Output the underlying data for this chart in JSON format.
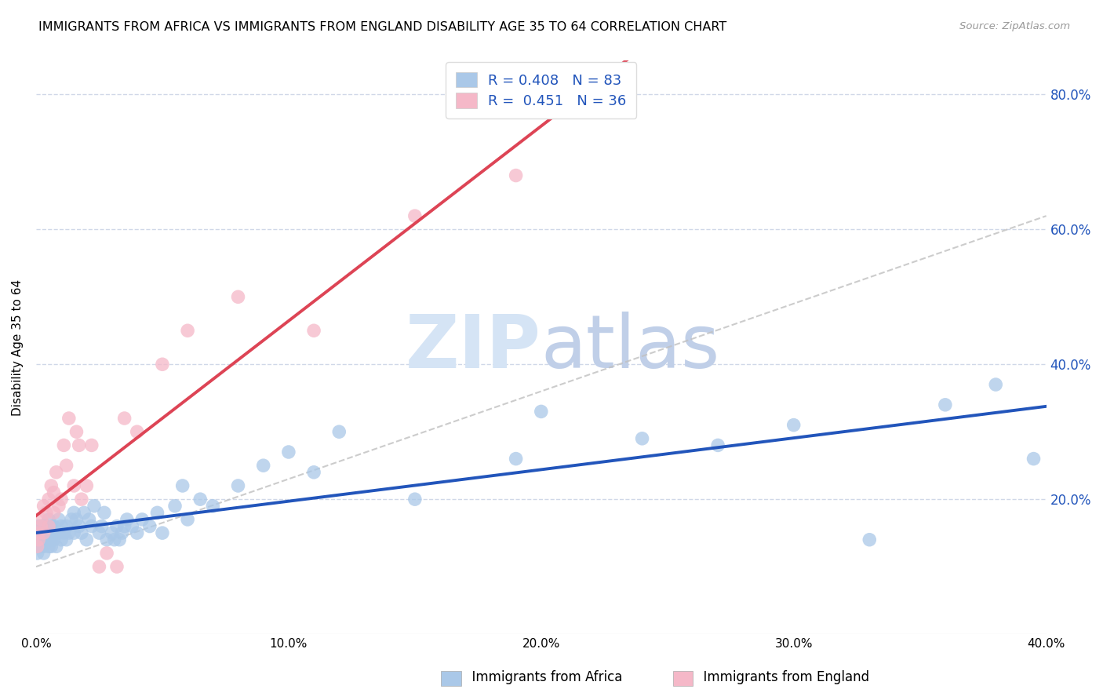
{
  "title": "IMMIGRANTS FROM AFRICA VS IMMIGRANTS FROM ENGLAND DISABILITY AGE 35 TO 64 CORRELATION CHART",
  "source": "Source: ZipAtlas.com",
  "ylabel": "Disability Age 35 to 64",
  "xmin": 0.0,
  "xmax": 0.4,
  "ymin": 0.0,
  "ymax": 0.85,
  "africa_R": 0.408,
  "africa_N": 83,
  "england_R": 0.451,
  "england_N": 36,
  "africa_color": "#aac8e8",
  "england_color": "#f5b8c8",
  "africa_line_color": "#2255bb",
  "england_line_color": "#dd4455",
  "trend_line_color": "#c0c0c0",
  "grid_color": "#d0d8e8",
  "watermark_color": "#ccd8ee",
  "africa_x": [
    0.0005,
    0.001,
    0.001,
    0.001,
    0.0015,
    0.002,
    0.002,
    0.002,
    0.0025,
    0.003,
    0.003,
    0.003,
    0.003,
    0.004,
    0.004,
    0.004,
    0.005,
    0.005,
    0.005,
    0.006,
    0.006,
    0.006,
    0.007,
    0.007,
    0.007,
    0.008,
    0.008,
    0.009,
    0.009,
    0.01,
    0.01,
    0.011,
    0.012,
    0.012,
    0.013,
    0.014,
    0.015,
    0.015,
    0.016,
    0.017,
    0.018,
    0.019,
    0.02,
    0.021,
    0.022,
    0.023,
    0.025,
    0.026,
    0.027,
    0.028,
    0.03,
    0.031,
    0.032,
    0.033,
    0.034,
    0.035,
    0.036,
    0.038,
    0.04,
    0.042,
    0.045,
    0.048,
    0.05,
    0.055,
    0.058,
    0.06,
    0.065,
    0.07,
    0.08,
    0.09,
    0.1,
    0.11,
    0.12,
    0.15,
    0.19,
    0.2,
    0.24,
    0.27,
    0.3,
    0.33,
    0.36,
    0.38,
    0.395
  ],
  "africa_y": [
    0.12,
    0.14,
    0.16,
    0.13,
    0.15,
    0.14,
    0.16,
    0.13,
    0.15,
    0.14,
    0.13,
    0.16,
    0.12,
    0.15,
    0.14,
    0.16,
    0.13,
    0.15,
    0.17,
    0.14,
    0.16,
    0.13,
    0.15,
    0.14,
    0.16,
    0.15,
    0.13,
    0.17,
    0.15,
    0.14,
    0.16,
    0.15,
    0.14,
    0.16,
    0.15,
    0.17,
    0.18,
    0.15,
    0.17,
    0.16,
    0.15,
    0.18,
    0.14,
    0.17,
    0.16,
    0.19,
    0.15,
    0.16,
    0.18,
    0.14,
    0.15,
    0.14,
    0.16,
    0.14,
    0.15,
    0.16,
    0.17,
    0.16,
    0.15,
    0.17,
    0.16,
    0.18,
    0.15,
    0.19,
    0.22,
    0.17,
    0.2,
    0.19,
    0.22,
    0.25,
    0.27,
    0.24,
    0.3,
    0.2,
    0.26,
    0.33,
    0.29,
    0.28,
    0.31,
    0.14,
    0.34,
    0.37,
    0.26
  ],
  "england_x": [
    0.0005,
    0.001,
    0.001,
    0.002,
    0.002,
    0.003,
    0.003,
    0.004,
    0.005,
    0.005,
    0.006,
    0.007,
    0.007,
    0.008,
    0.009,
    0.01,
    0.011,
    0.012,
    0.013,
    0.015,
    0.016,
    0.017,
    0.018,
    0.02,
    0.022,
    0.025,
    0.028,
    0.032,
    0.035,
    0.04,
    0.05,
    0.06,
    0.08,
    0.11,
    0.15,
    0.19
  ],
  "england_y": [
    0.13,
    0.15,
    0.14,
    0.17,
    0.16,
    0.15,
    0.19,
    0.18,
    0.16,
    0.2,
    0.22,
    0.18,
    0.21,
    0.24,
    0.19,
    0.2,
    0.28,
    0.25,
    0.32,
    0.22,
    0.3,
    0.28,
    0.2,
    0.22,
    0.28,
    0.1,
    0.12,
    0.1,
    0.32,
    0.3,
    0.4,
    0.45,
    0.5,
    0.45,
    0.62,
    0.68
  ],
  "xtick_labels": [
    "0.0%",
    "10.0%",
    "20.0%",
    "30.0%",
    "40.0%"
  ],
  "xtick_values": [
    0.0,
    0.1,
    0.2,
    0.3,
    0.4
  ],
  "ytick_labels": [
    "20.0%",
    "40.0%",
    "60.0%",
    "80.0%"
  ],
  "ytick_values": [
    0.2,
    0.4,
    0.6,
    0.8
  ]
}
